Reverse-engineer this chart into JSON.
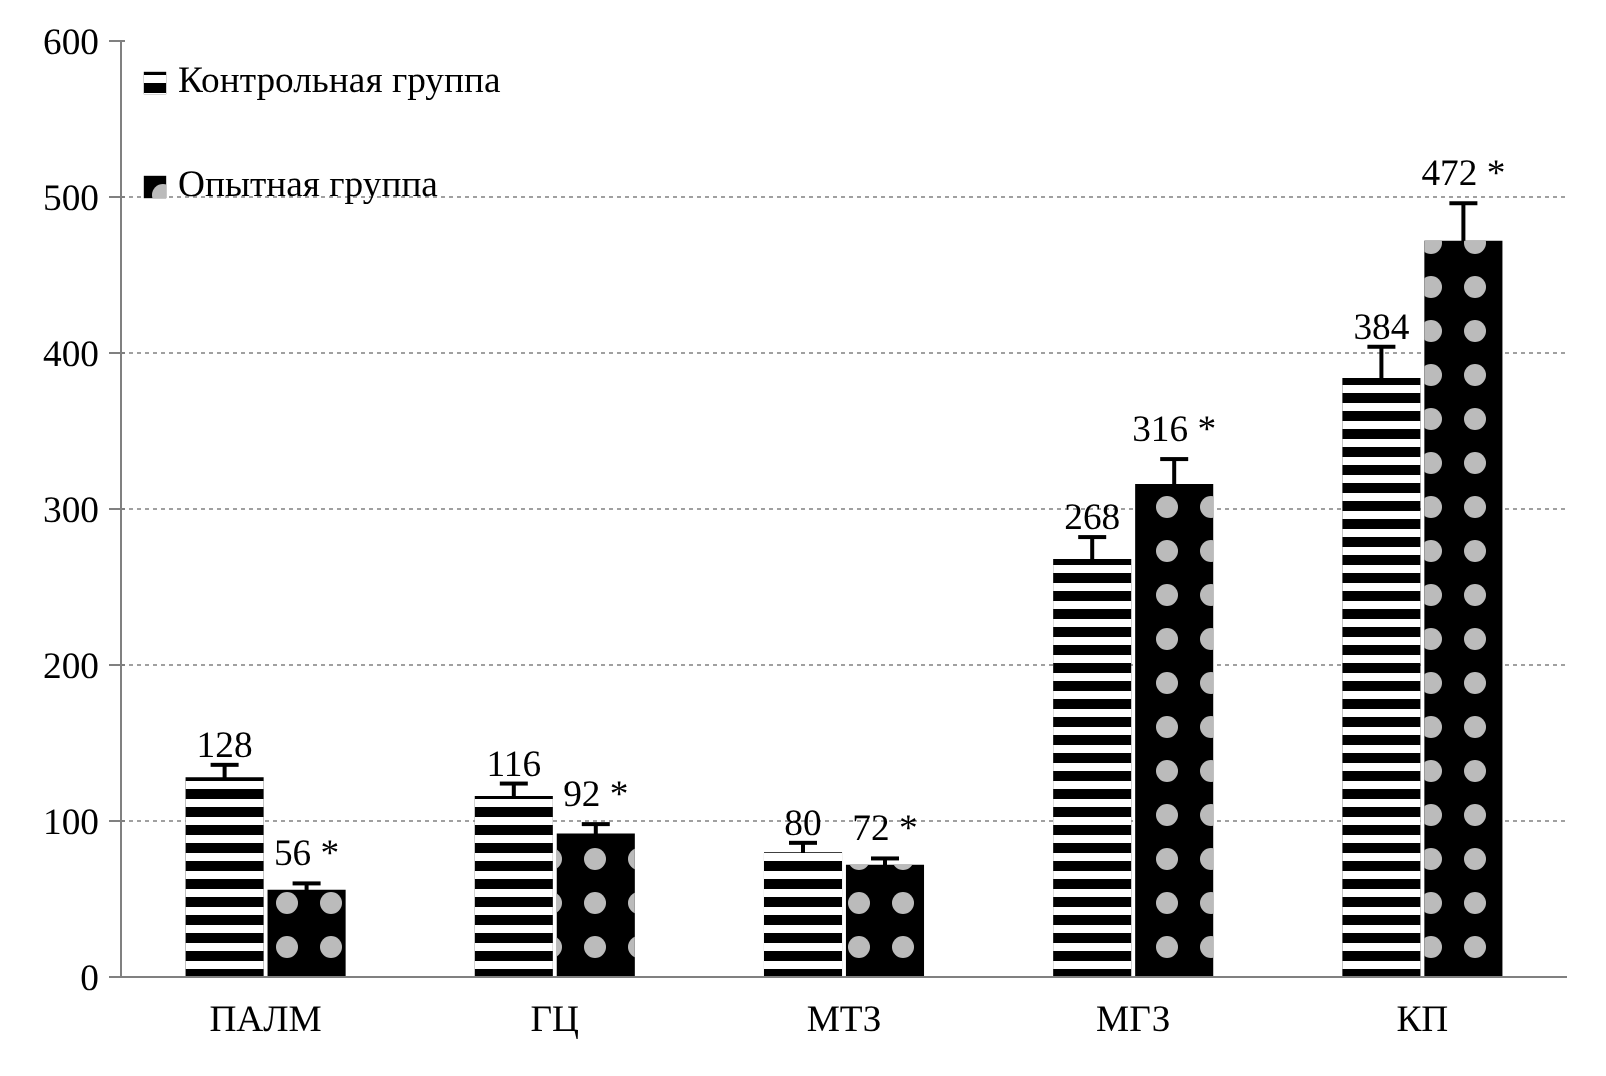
{
  "chart_data": {
    "type": "bar",
    "categories": [
      "ПАЛМ",
      "ГЦ",
      "МТЗ",
      "МГЗ",
      "КП"
    ],
    "series": [
      {
        "name": "Контрольная группа",
        "color": "#000000",
        "values": [
          128,
          116,
          80,
          268,
          384
        ],
        "errors": [
          8,
          8,
          6,
          14,
          20
        ],
        "value_labels": [
          "128",
          "116",
          "80",
          "268",
          "384"
        ]
      },
      {
        "name": "Опытная группа",
        "color": "#000000",
        "values": [
          56,
          92,
          72,
          316,
          472
        ],
        "errors": [
          4,
          6,
          4,
          16,
          24
        ],
        "value_labels": [
          "56 *",
          "92 *",
          "72 *",
          "316 *",
          "472 *"
        ]
      }
    ],
    "ylim": [
      0,
      600
    ],
    "yticks": [
      0,
      100,
      200,
      300,
      400,
      500,
      600
    ],
    "grid": "y",
    "legend": "top left"
  }
}
